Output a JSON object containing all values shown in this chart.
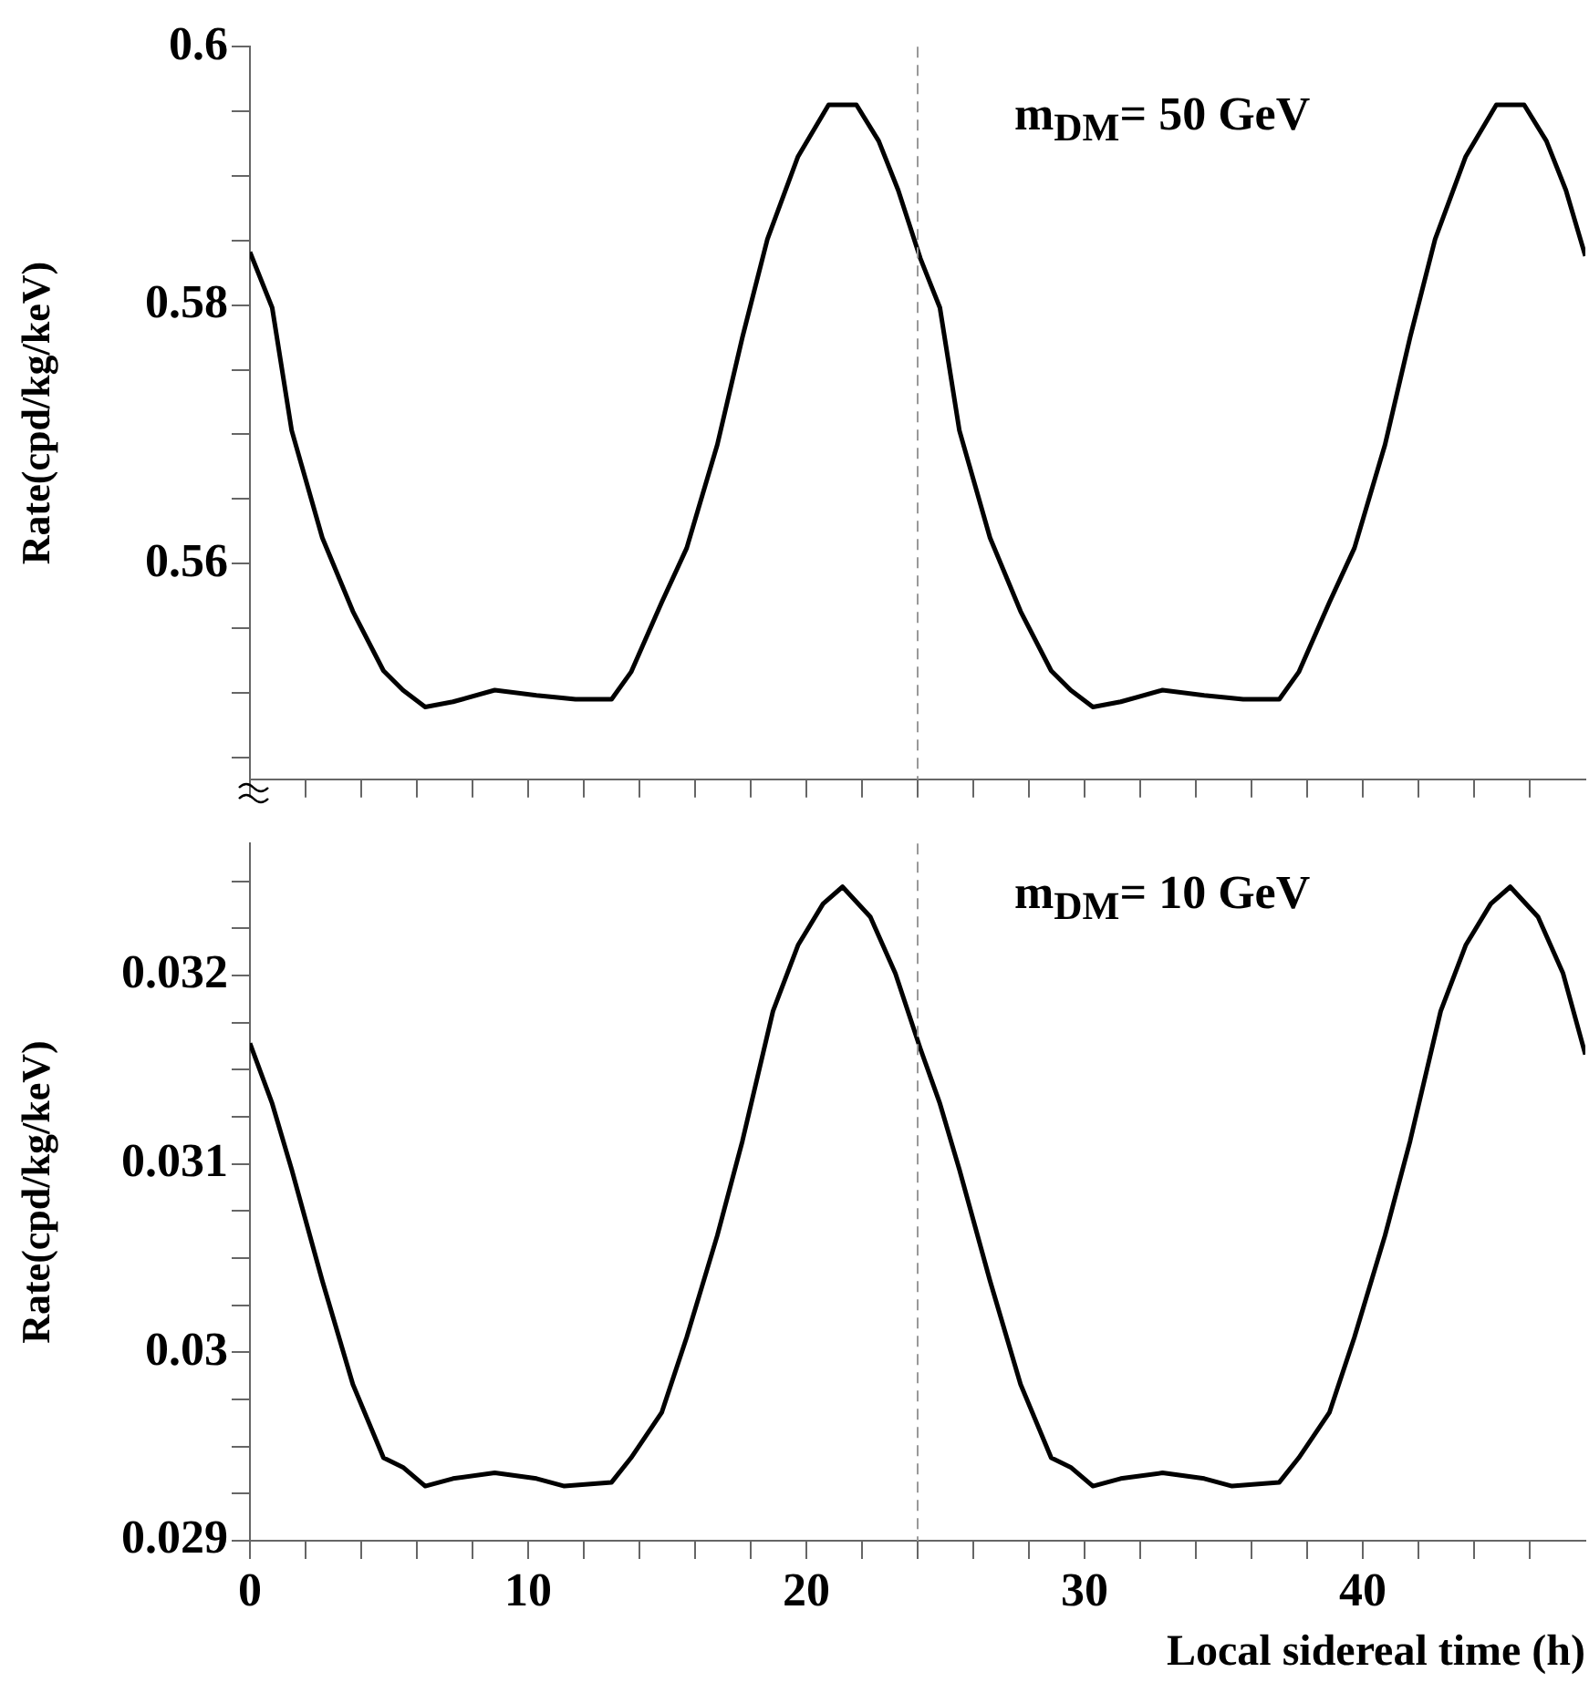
{
  "chart_data": [
    {
      "type": "line",
      "ylabel": "Rate(cpd/kg/keV)",
      "annotations": [
        "m$_{DM}$= 50 GeV"
      ],
      "tick_labels": "y",
      "grid": false,
      "legend": false,
      "marker": "none",
      "line_style": "solid",
      "x": [
        0,
        0.8,
        1.5,
        2.6,
        3.7,
        4.8,
        5.5,
        6.3,
        7.3,
        8.8,
        10.3,
        11.7,
        13,
        13.7,
        14.8,
        15.7,
        16.8,
        17.7,
        18.6,
        19.7,
        20.8,
        21.8,
        22.6,
        23.3,
        24.1,
        24.8,
        25.5,
        26.6,
        27.7,
        28.8,
        29.5,
        30.3,
        31.3,
        32.8,
        34.3,
        35.7,
        37,
        37.7,
        38.8,
        39.7,
        40.8,
        41.7,
        42.6,
        43.7,
        44.8,
        45.8,
        46.6,
        47.3,
        48
      ],
      "series": [
        {
          "color": "#000000",
          "values": [
            0.5841,
            0.5798,
            0.5703,
            0.562,
            0.5563,
            0.5517,
            0.5502,
            0.5489,
            0.5493,
            0.5502,
            0.5498,
            0.5495,
            0.5495,
            0.5516,
            0.557,
            0.5612,
            0.5692,
            0.5775,
            0.5851,
            0.5915,
            0.5955,
            0.5955,
            0.5927,
            0.5889,
            0.5836,
            0.5798,
            0.5703,
            0.562,
            0.5563,
            0.5517,
            0.5502,
            0.5489,
            0.5493,
            0.5502,
            0.5498,
            0.5495,
            0.5495,
            0.5516,
            0.557,
            0.5612,
            0.5692,
            0.5775,
            0.5851,
            0.5915,
            0.5955,
            0.5955,
            0.5927,
            0.5889,
            0.5838
          ]
        }
      ],
      "xlim": [
        0,
        48
      ],
      "xticks": [
        0,
        {
          "value": 2,
          "label": null
        },
        {
          "value": 4,
          "label": null
        },
        {
          "value": 6,
          "label": null
        },
        {
          "value": 8,
          "label": null
        },
        10,
        {
          "value": 12,
          "label": null
        },
        {
          "value": 14,
          "label": null
        },
        {
          "value": 16,
          "label": null
        },
        {
          "value": 18,
          "label": null
        },
        20,
        {
          "value": 22,
          "label": null
        },
        {
          "value": 24,
          "label": null
        },
        {
          "value": 26,
          "label": null
        },
        {
          "value": 28,
          "label": null
        },
        30,
        {
          "value": 32,
          "label": null
        },
        {
          "value": 34,
          "label": null
        },
        {
          "value": 36,
          "label": null
        },
        {
          "value": 38,
          "label": null
        },
        40,
        {
          "value": 42,
          "label": null
        },
        {
          "value": 44,
          "label": null
        },
        {
          "value": 46,
          "label": null
        }
      ],
      "ylim": [
        0.5433,
        0.6
      ],
      "yticks": [
        {
          "value": 0.545,
          "label": null
        },
        {
          "value": 0.55,
          "label": null
        },
        {
          "value": 0.555,
          "label": null
        },
        0.56,
        {
          "value": 0.565,
          "label": null
        },
        {
          "value": 0.57,
          "label": null
        },
        {
          "value": 0.575,
          "label": null
        },
        0.58,
        {
          "value": 0.585,
          "label": null
        },
        {
          "value": 0.59,
          "label": null
        },
        {
          "value": 0.595,
          "label": null
        },
        0.6
      ],
      "ref_lines": [
        {
          "axis": "x",
          "value": 24,
          "color": "#999999",
          "line_style": "dashed"
        }
      ]
    },
    {
      "type": "line",
      "xlabel": "Local sidereal time (h)",
      "ylabel": "Rate(cpd/kg/keV)",
      "annotations": [
        "m$_{DM}$= 10 GeV"
      ],
      "grid": false,
      "legend": false,
      "marker": "none",
      "line_style": "solid",
      "x": [
        0,
        0.8,
        1.5,
        2.6,
        3.7,
        4.8,
        5.5,
        6.3,
        7.3,
        8.8,
        10.3,
        11.3,
        13,
        13.7,
        14.8,
        15.7,
        16.8,
        17.7,
        18.8,
        19.7,
        20.6,
        21.3,
        22.3,
        23.2,
        24.1,
        24.8,
        25.5,
        26.6,
        27.7,
        28.8,
        29.5,
        30.3,
        31.3,
        32.8,
        34.3,
        35.3,
        37,
        37.7,
        38.8,
        39.7,
        40.8,
        41.7,
        42.8,
        43.7,
        44.6,
        45.3,
        46.3,
        47.2,
        48
      ],
      "series": [
        {
          "color": "#000000",
          "values": [
            0.03164,
            0.03132,
            0.03097,
            0.03038,
            0.02983,
            0.02944,
            0.02939,
            0.02929,
            0.02933,
            0.02936,
            0.02933,
            0.02929,
            0.02931,
            0.02944,
            0.02968,
            0.03008,
            0.03062,
            0.03112,
            0.03181,
            0.03216,
            0.03238,
            0.03247,
            0.03231,
            0.03201,
            0.03161,
            0.03132,
            0.03097,
            0.03038,
            0.02983,
            0.02944,
            0.02939,
            0.02929,
            0.02933,
            0.02936,
            0.02933,
            0.02929,
            0.02931,
            0.02944,
            0.02968,
            0.03008,
            0.03062,
            0.03112,
            0.03181,
            0.03216,
            0.03238,
            0.03247,
            0.03231,
            0.03201,
            0.03158
          ]
        }
      ],
      "xlim": [
        0,
        48
      ],
      "xticks": [
        0,
        {
          "value": 2,
          "label": null
        },
        {
          "value": 4,
          "label": null
        },
        {
          "value": 6,
          "label": null
        },
        {
          "value": 8,
          "label": null
        },
        10,
        {
          "value": 12,
          "label": null
        },
        {
          "value": 14,
          "label": null
        },
        {
          "value": 16,
          "label": null
        },
        {
          "value": 18,
          "label": null
        },
        20,
        {
          "value": 22,
          "label": null
        },
        {
          "value": 24,
          "label": null
        },
        {
          "value": 26,
          "label": null
        },
        {
          "value": 28,
          "label": null
        },
        30,
        {
          "value": 32,
          "label": null
        },
        {
          "value": 34,
          "label": null
        },
        {
          "value": 36,
          "label": null
        },
        {
          "value": 38,
          "label": null
        },
        40,
        {
          "value": 42,
          "label": null
        },
        {
          "value": 44,
          "label": null
        },
        {
          "value": 46,
          "label": null
        }
      ],
      "ylim": [
        0.029,
        0.0327
      ],
      "yticks": [
        0.029,
        {
          "value": 0.02925,
          "label": null
        },
        {
          "value": 0.0295,
          "label": null
        },
        {
          "value": 0.02975,
          "label": null
        },
        0.03,
        {
          "value": 0.03025,
          "label": null
        },
        {
          "value": 0.0305,
          "label": null
        },
        {
          "value": 0.03075,
          "label": null
        },
        0.031,
        {
          "value": 0.03125,
          "label": null
        },
        {
          "value": 0.0315,
          "label": null
        },
        {
          "value": 0.03175,
          "label": null
        },
        0.032,
        {
          "value": 0.03225,
          "label": null
        },
        {
          "value": 0.0325,
          "label": null
        }
      ],
      "ref_lines": [
        {
          "axis": "x",
          "value": 24,
          "color": "#999999",
          "line_style": "dashed"
        }
      ]
    }
  ]
}
